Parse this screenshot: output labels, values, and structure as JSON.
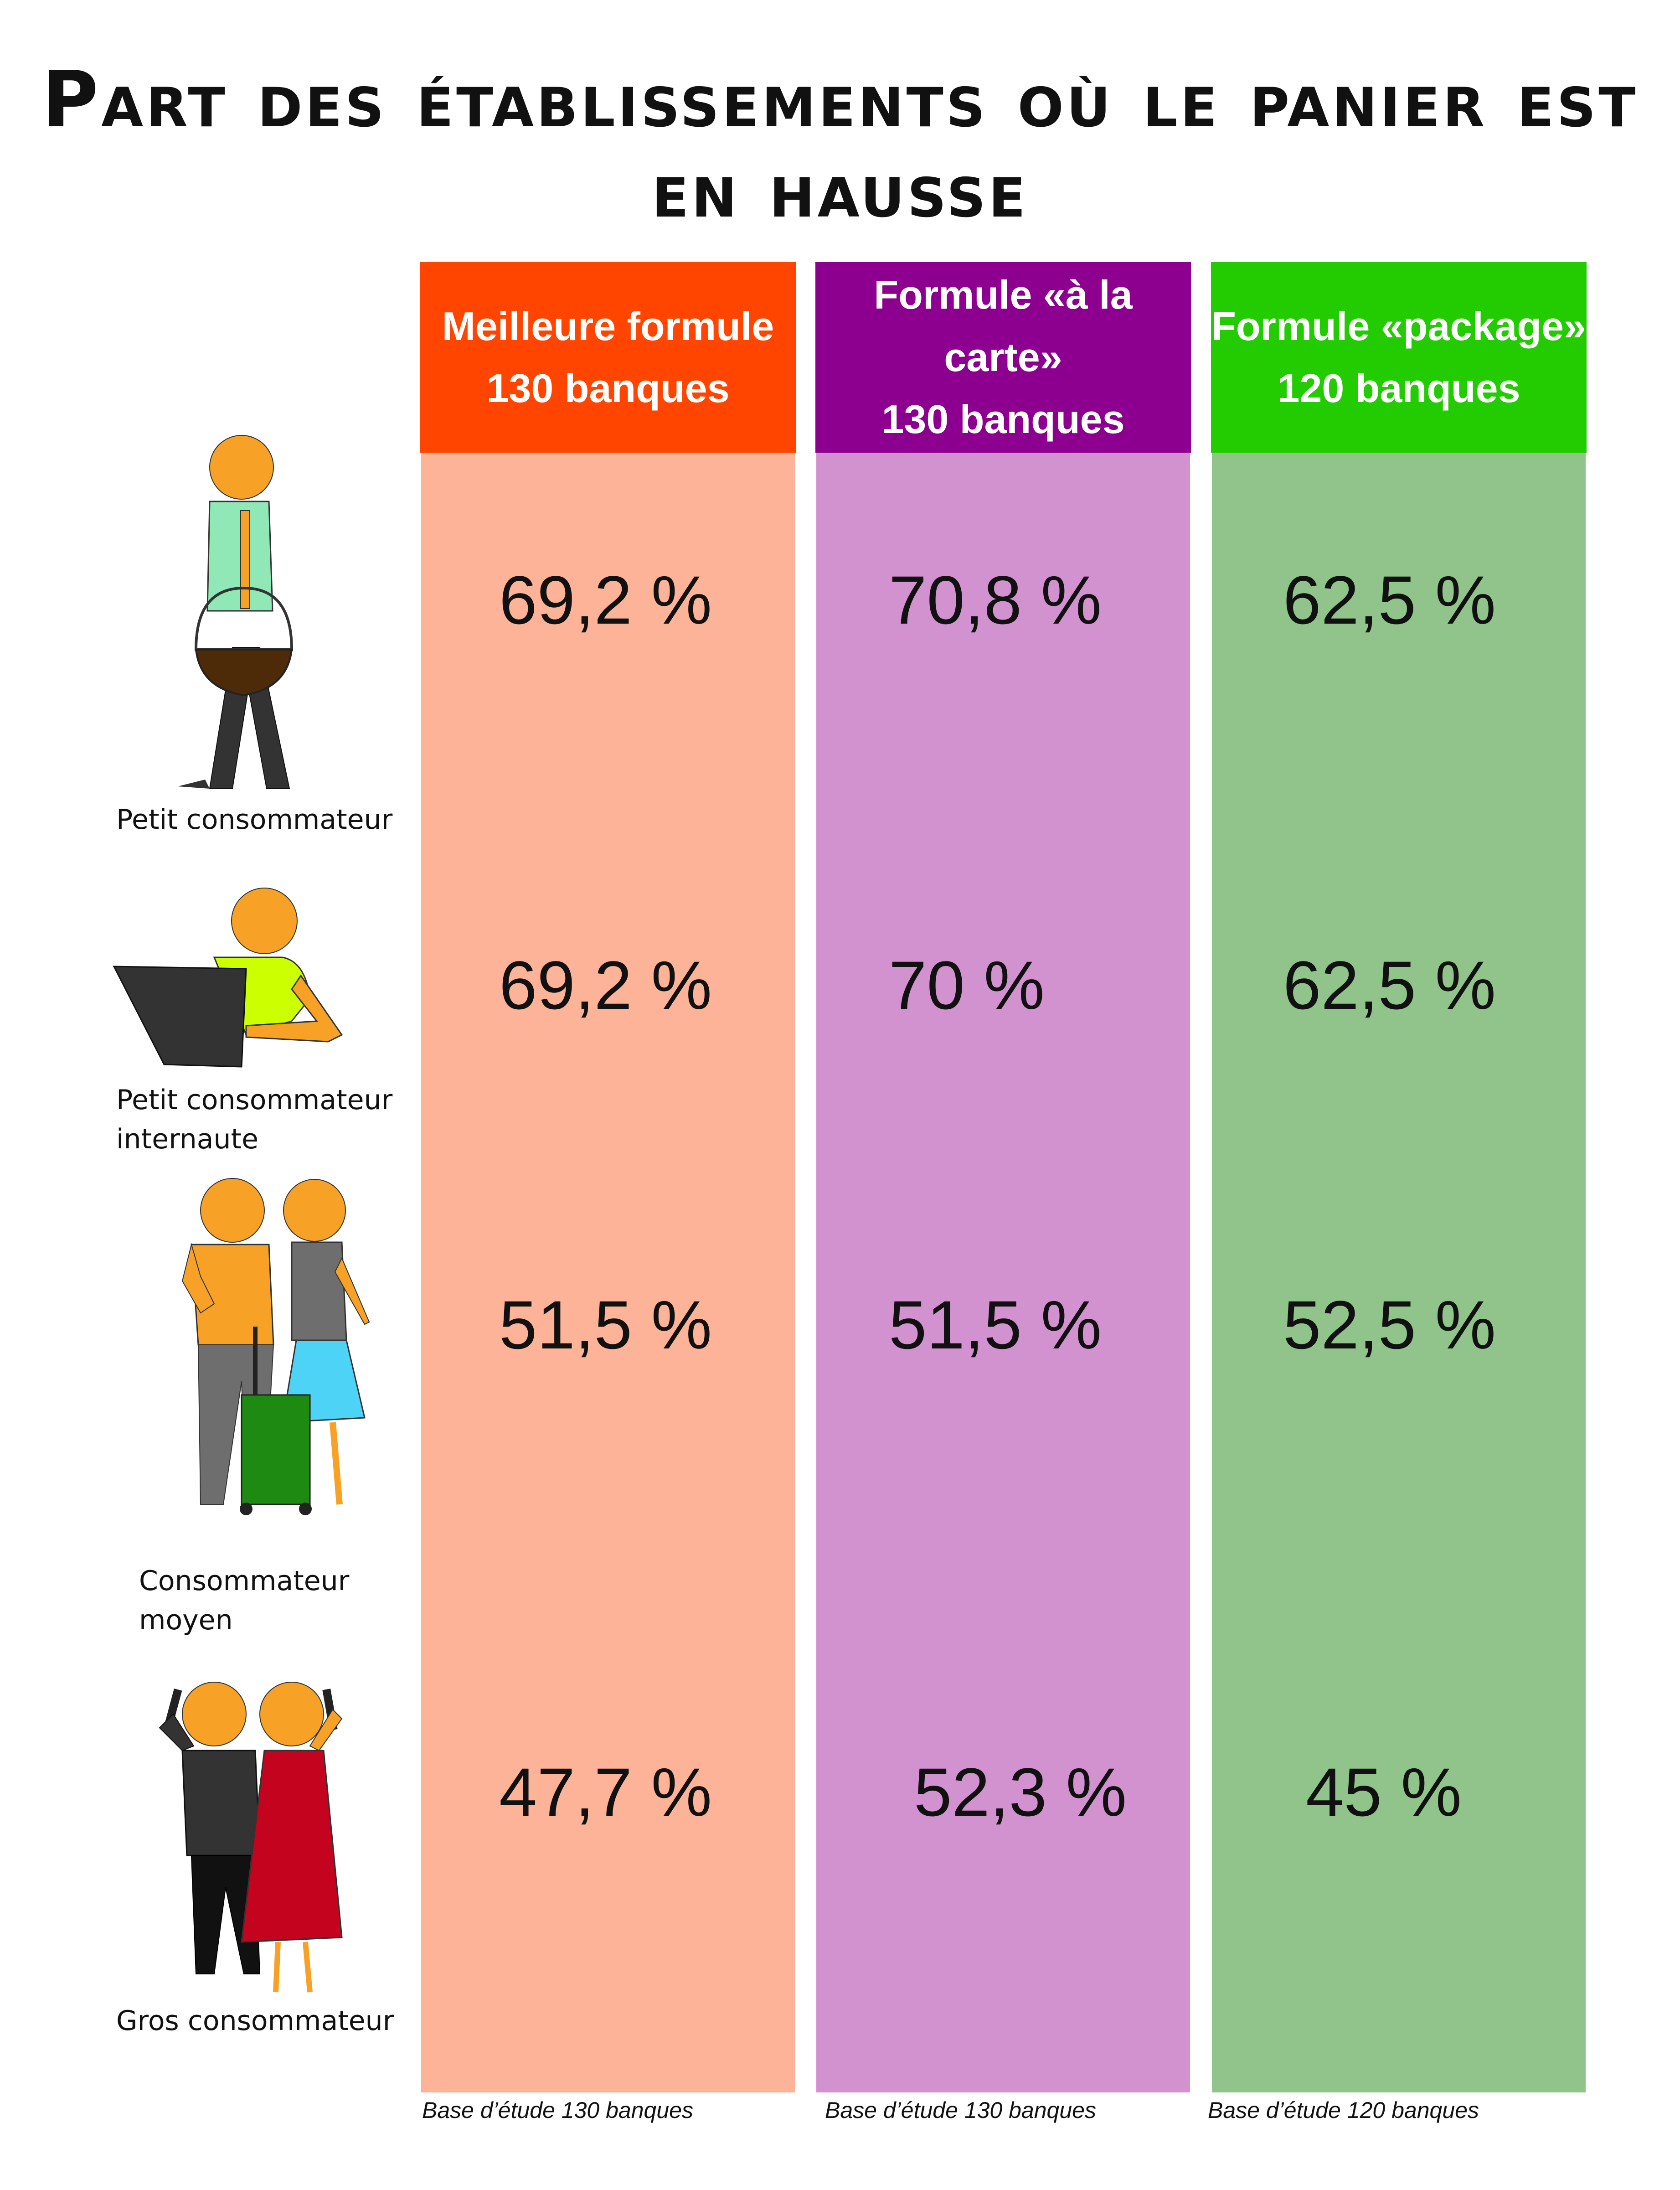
{
  "title": "Part des établissements où le panier est en hausse",
  "columns": [
    {
      "line1": "Meilleure formule",
      "line2": "130 banques",
      "header_color": "#ff4500",
      "body_color": "#fdb398",
      "base": "Base d’étude 130 banques"
    },
    {
      "line1": "Formule «à la carte»",
      "line2": "130 banques",
      "header_color": "#8d008f",
      "body_color": "#d291cf",
      "base": "Base d’étude 130 banques"
    },
    {
      "line1": "Formule «package»",
      "line2": "120 banques",
      "header_color": "#22cc00",
      "body_color": "#90c48a",
      "base": "Base d’étude 120 banques"
    }
  ],
  "rows": [
    {
      "label_line1": "Petit consommateur",
      "label_line2": "",
      "icon": "shopper-with-basket-icon"
    },
    {
      "label_line1": "Petit consommateur",
      "label_line2": "internaute",
      "icon": "person-at-laptop-icon"
    },
    {
      "label_line1": "Consommateur",
      "label_line2": "moyen",
      "icon": "couple-with-shopping-cart-icon"
    },
    {
      "label_line1": "Gros consommateur",
      "label_line2": "",
      "icon": "couple-on-phones-icon"
    }
  ],
  "chart_data": {
    "type": "table",
    "title": "Part des établissements où le panier est en hausse",
    "categories": [
      "Petit consommateur",
      "Petit consommateur internaute",
      "Consommateur moyen",
      "Gros consommateur"
    ],
    "series": [
      {
        "name": "Meilleure formule 130 banques",
        "values": [
          69.2,
          69.2,
          51.5,
          47.7
        ],
        "labels": [
          "69,2 %",
          "69,2 %",
          "51,5 %",
          "47,7 %"
        ]
      },
      {
        "name": "Formule «à la carte» 130 banques",
        "values": [
          70.8,
          70,
          51.5,
          52.3
        ],
        "labels": [
          "70,8 %",
          "70 %",
          "51,5 %",
          "52,3 %"
        ]
      },
      {
        "name": "Formule «package» 120 banques",
        "values": [
          62.5,
          62.5,
          52.5,
          45
        ],
        "labels": [
          "62,5 %",
          "62,5 %",
          "52,5 %",
          "45 %"
        ]
      }
    ]
  }
}
